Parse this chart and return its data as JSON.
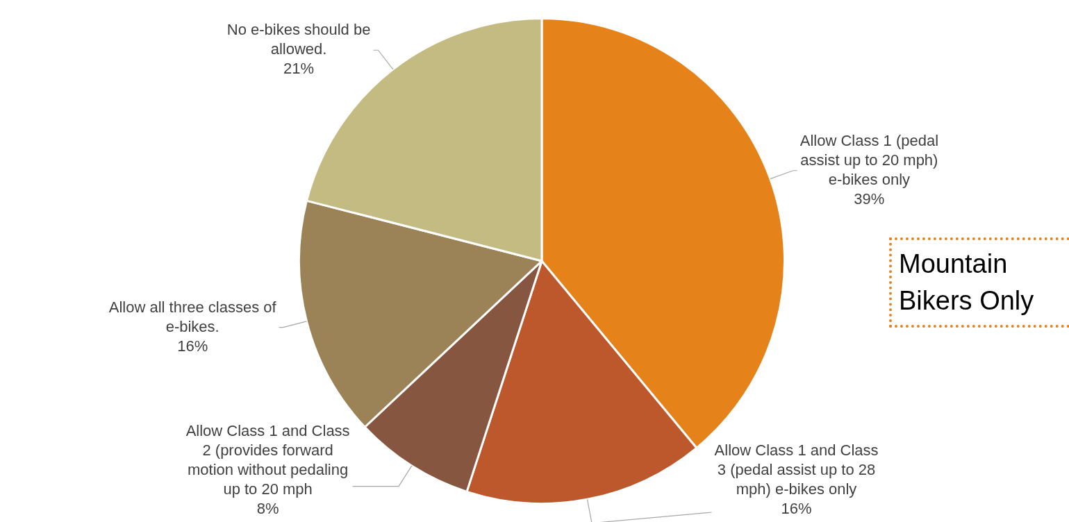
{
  "chart_data": {
    "type": "pie",
    "categories": [
      "Allow Class 1 (pedal assist up to 20 mph) e-bikes only",
      "Allow Class 1 and Class 3 (pedal assist up to 28 mph) e-bikes only",
      "Allow Class 1 and Class 2 (provides forward motion without pedaling up to 20 mph",
      "Allow all three classes of e-bikes.",
      "No e-bikes should be allowed."
    ],
    "values": [
      39,
      16,
      8,
      16,
      21
    ],
    "value_labels": [
      "39%",
      "16%",
      "8%",
      "16%",
      "21%"
    ],
    "colors": [
      "#e5821a",
      "#bd582c",
      "#865640",
      "#9b8357",
      "#c3bb82"
    ],
    "annotations": [
      "Mountain Bikers Only"
    ],
    "legend": false
  }
}
